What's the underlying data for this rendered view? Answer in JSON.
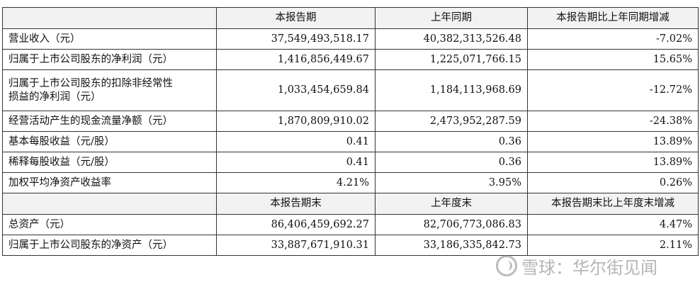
{
  "table": {
    "header1": [
      "",
      "本报告期",
      "上年同期",
      "本报告期比上年同期增减"
    ],
    "rows1": [
      {
        "label": "营业收入（元）",
        "current": "37,549,493,518.17",
        "prior": "40,382,313,526.48",
        "change": "-7.02%"
      },
      {
        "label": "归属于上市公司股东的净利润（元）",
        "current": "1,416,856,449.67",
        "prior": "1,225,071,766.15",
        "change": "15.65%"
      },
      {
        "label_line1": "归属于上市公司股东的扣除非经常性",
        "label_line2": "损益的净利润（元）",
        "current": "1,033,454,659.84",
        "prior": "1,184,113,968.69",
        "change": "-12.72%"
      },
      {
        "label": "经营活动产生的现金流量净额（元）",
        "current": "1,870,809,910.02",
        "prior": "2,473,952,287.59",
        "change": "-24.38%"
      },
      {
        "label": "基本每股收益（元/股）",
        "current": "0.41",
        "prior": "0.36",
        "change": "13.89%"
      },
      {
        "label": "稀释每股收益（元/股）",
        "current": "0.41",
        "prior": "0.36",
        "change": "13.89%"
      },
      {
        "label": "加权平均净资产收益率",
        "current": "4.21%",
        "prior": "3.95%",
        "change": "0.26%"
      }
    ],
    "header2": [
      "",
      "本报告期末",
      "上年度末",
      "本报告期末比上年度末增减"
    ],
    "rows2": [
      {
        "label": "总资产（元）",
        "current": "86,406,459,692.27",
        "prior": "82,706,773,086.83",
        "change": "4.47%"
      },
      {
        "label": "归属于上市公司股东的净资产（元）",
        "current": "33,887,671,910.31",
        "prior": "33,186,335,842.73",
        "change": "2.11%"
      }
    ]
  },
  "watermark": {
    "text": "雪球：华尔街见闻",
    "icon": "snowball-logo-icon"
  }
}
